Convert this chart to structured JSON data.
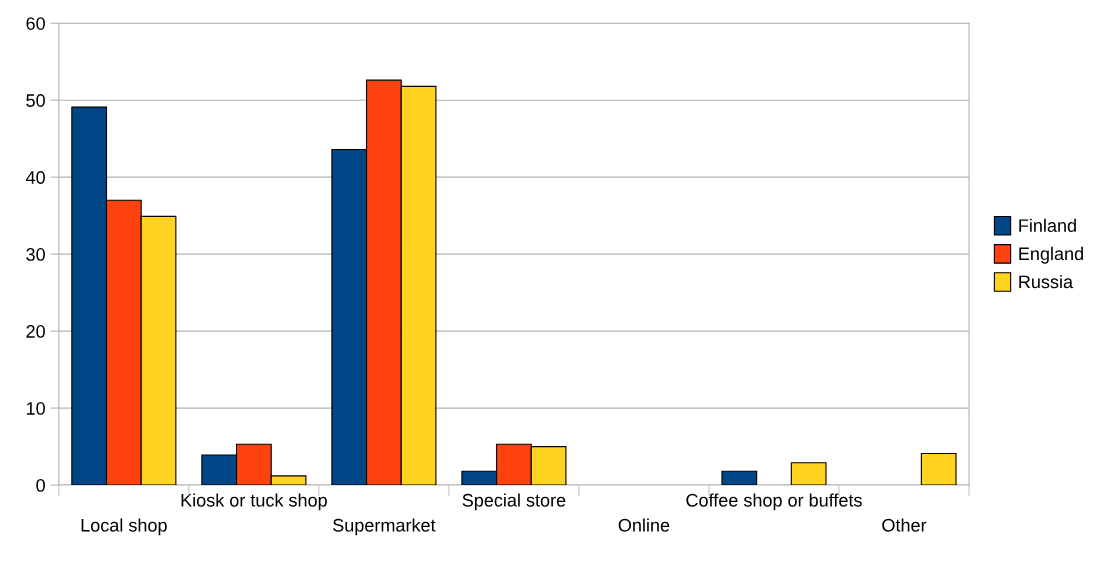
{
  "chart_data": {
    "type": "bar",
    "categories": [
      "Local shop",
      "Kiosk or tuck shop",
      "Supermarket",
      "Special store",
      "Online",
      "Coffee shop or buffets",
      "Other"
    ],
    "series": [
      {
        "name": "Finland",
        "color": "#004586",
        "values": [
          49.1,
          3.9,
          43.6,
          1.8,
          0,
          1.8,
          0
        ]
      },
      {
        "name": "England",
        "color": "#ff420e",
        "values": [
          37.0,
          5.3,
          52.6,
          5.3,
          0,
          0,
          0
        ]
      },
      {
        "name": "Russia",
        "color": "#ffd320",
        "values": [
          34.9,
          1.2,
          51.8,
          5.0,
          0,
          2.9,
          4.1
        ]
      }
    ],
    "ylim": [
      0,
      60
    ],
    "yticks": [
      0,
      10,
      20,
      30,
      40,
      50,
      60
    ],
    "grid": "y",
    "legend": "right"
  }
}
